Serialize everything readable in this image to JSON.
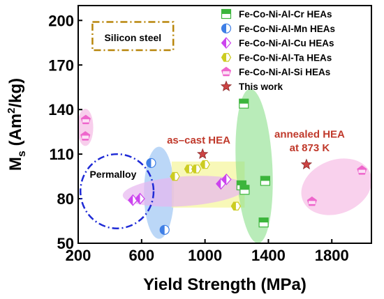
{
  "chart_data": {
    "type": "scatter",
    "title": "",
    "xlabel": "Yield Strength (MPa)",
    "ylabel_main": "M",
    "ylabel_sub": "s",
    "ylabel_rest": " (Am",
    "ylabel_sup": "2",
    "ylabel_end": "/kg)",
    "xlim": [
      200,
      2050
    ],
    "ylim": [
      50,
      210
    ],
    "xticks": [
      200,
      600,
      1000,
      1400,
      1800
    ],
    "yticks": [
      50,
      80,
      110,
      140,
      170,
      200
    ],
    "legend_position": "top-right",
    "series": [
      {
        "name": "Fe-Co-Ni-Al-Cr HEAs",
        "marker": "square-half",
        "color": "#3cb53c",
        "points": [
          [
            1245,
            144
          ],
          [
            1230,
            89
          ],
          [
            1250,
            86
          ],
          [
            1380,
            92
          ],
          [
            1370,
            64
          ]
        ]
      },
      {
        "name": "Fe-Co-Ni-Al-Mn HEAs",
        "marker": "circle-half",
        "color": "#3f7fe6",
        "points": [
          [
            660,
            104
          ],
          [
            745,
            59
          ]
        ]
      },
      {
        "name": "Fe-Co-Ni-Al-Cu HEAs",
        "marker": "diamond-half",
        "color": "#cc44ee",
        "points": [
          [
            545,
            79
          ],
          [
            590,
            80
          ],
          [
            1100,
            90
          ],
          [
            1135,
            93
          ]
        ]
      },
      {
        "name": "Fe-Co-Ni-Al-Ta HEAs",
        "marker": "hexagon-half",
        "color": "#cccc22",
        "points": [
          [
            810,
            95
          ],
          [
            900,
            100
          ],
          [
            945,
            100
          ],
          [
            1000,
            103
          ],
          [
            1195,
            75
          ]
        ]
      },
      {
        "name": "Fe-Co-Ni-Al-Si HEAs",
        "marker": "pentagon",
        "color": "#ee66cc",
        "points": [
          [
            248,
            133
          ],
          [
            245,
            122
          ],
          [
            1675,
            78
          ],
          [
            1990,
            99
          ]
        ]
      },
      {
        "name": "This work",
        "marker": "star",
        "color": "#cc4444",
        "points": [
          [
            985,
            110
          ],
          [
            1640,
            103
          ]
        ]
      }
    ],
    "annotations": {
      "silicon_steel": "Silicon steel",
      "permalloy": "Permalloy",
      "as_cast": "as–cast HEA",
      "annealed_line1": "annealed HEA",
      "annealed_line2": "at 873 K"
    },
    "colors": {
      "silicon_box": "#b8860b",
      "permalloy_ellipse": "#1f2bd6",
      "annotation_text": "#c0392b",
      "green_region": "#8be08b",
      "blue_region": "#9ec6f3",
      "yellow_region": "#f5f59a",
      "purple_region": "#e7b7ef",
      "pink_region": "#f6bde6"
    }
  }
}
